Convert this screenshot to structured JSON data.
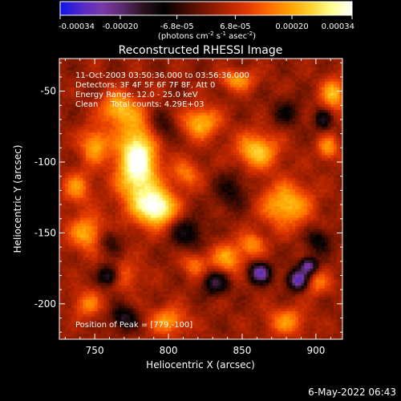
{
  "chart_data": {
    "type": "heatmap",
    "title": "Reconstructed RHESSI Image",
    "xlabel": "Heliocentric X (arcsec)",
    "ylabel": "Heliocentric Y (arcsec)",
    "xlim": [
      726,
      918
    ],
    "ylim": [
      -225,
      -27
    ],
    "x_ticks": [
      750,
      800,
      850,
      900
    ],
    "y_ticks": [
      -50,
      -100,
      -150,
      -200
    ],
    "colorbar": {
      "ticks": [
        "-0.00034",
        "-0.00020",
        "-6.8e-05",
        "6.8e-05",
        "0.00020",
        "0.00034"
      ],
      "tick_values": [
        -0.00034,
        -0.0002,
        -6.8e-05,
        6.8e-05,
        0.0002,
        0.00034
      ],
      "range": [
        -0.00034,
        0.00034
      ],
      "unit_label": [
        "(photons cm",
        "-2",
        " s",
        "-1",
        " asec",
        "-2",
        ")"
      ],
      "colors": [
        "#0b16e8",
        "#5028c8",
        "#7a3aa8",
        "#5a2a6c",
        "#2a121e",
        "#000000",
        "#3e0b00",
        "#7a1700",
        "#b32400",
        "#e23a00",
        "#ff6a00",
        "#ffa000",
        "#ffd030",
        "#ffff90",
        "#ffffff"
      ]
    },
    "annotations": [
      "11-Oct-2003 03:50:36.000 to 03:56:36.000",
      "Detectors: 3F 4F 5F 6F 7F 8F, Att 0",
      "Energy Range: 12.0 - 25.0 keV",
      "Clean     Total counts: 4.29E+03"
    ],
    "peak_label": "Position of Peak = [779,-100]",
    "peak": {
      "x": 779,
      "y": -100,
      "value": 0.00034
    },
    "grid": false,
    "colormap": "rhessi-bluewhite",
    "sources": [
      {
        "x": 779,
        "y": -100,
        "sx": 10,
        "sy": 22,
        "amp": 1.0
      },
      {
        "x": 793,
        "y": -132,
        "sx": 9,
        "sy": 9,
        "amp": 0.9
      },
      {
        "x": 765,
        "y": -62,
        "sx": 8,
        "sy": 8,
        "amp": 0.55
      },
      {
        "x": 750,
        "y": -88,
        "sx": 7,
        "sy": 9,
        "amp": 0.55
      },
      {
        "x": 745,
        "y": -150,
        "sx": 9,
        "sy": 9,
        "amp": 0.55
      },
      {
        "x": 822,
        "y": -72,
        "sx": 9,
        "sy": 8,
        "amp": 0.6
      },
      {
        "x": 860,
        "y": -92,
        "sx": 10,
        "sy": 9,
        "amp": 0.65
      },
      {
        "x": 880,
        "y": -130,
        "sx": 12,
        "sy": 11,
        "amp": 0.62
      },
      {
        "x": 912,
        "y": -52,
        "sx": 6,
        "sy": 8,
        "amp": 0.6
      },
      {
        "x": 908,
        "y": -90,
        "sx": 5,
        "sy": 6,
        "amp": 0.5
      },
      {
        "x": 847,
        "y": -42,
        "sx": 8,
        "sy": 5,
        "amp": 0.5
      },
      {
        "x": 840,
        "y": -168,
        "sx": 8,
        "sy": 8,
        "amp": 0.5
      },
      {
        "x": 800,
        "y": -212,
        "sx": 9,
        "sy": 7,
        "amp": 0.5
      },
      {
        "x": 880,
        "y": -212,
        "sx": 9,
        "sy": 7,
        "amp": 0.45
      },
      {
        "x": 900,
        "y": -185,
        "sx": 7,
        "sy": 6,
        "amp": 0.4
      },
      {
        "x": 818,
        "y": -172,
        "sx": 6,
        "sy": 6,
        "amp": 0.4
      },
      {
        "x": 857,
        "y": -158,
        "sx": 6,
        "sy": 6,
        "amp": 0.45
      },
      {
        "x": 812,
        "y": -108,
        "sx": 7,
        "sy": 7,
        "amp": 0.4
      },
      {
        "x": 745,
        "y": -200,
        "sx": 7,
        "sy": 7,
        "amp": 0.4
      },
      {
        "x": 738,
        "y": -118,
        "sx": 7,
        "sy": 8,
        "amp": 0.45
      },
      {
        "x": 770,
        "y": -180,
        "sx": 8,
        "sy": 7,
        "amp": 0.35
      },
      {
        "x": 760,
        "y": -155,
        "sx": 6,
        "sy": 6,
        "amp": -0.35
      },
      {
        "x": 760,
        "y": -180,
        "sx": 5,
        "sy": 5,
        "amp": -0.65
      },
      {
        "x": 832,
        "y": -185,
        "sx": 6,
        "sy": 6,
        "amp": -0.55
      },
      {
        "x": 862,
        "y": -178,
        "sx": 5,
        "sy": 5,
        "amp": -0.85
      },
      {
        "x": 888,
        "y": -183,
        "sx": 5,
        "sy": 5,
        "amp": -0.95
      },
      {
        "x": 895,
        "y": -173,
        "sx": 4,
        "sy": 4,
        "amp": -0.8
      },
      {
        "x": 813,
        "y": -150,
        "sx": 8,
        "sy": 8,
        "amp": -0.4
      },
      {
        "x": 843,
        "y": -120,
        "sx": 8,
        "sy": 10,
        "amp": -0.3
      },
      {
        "x": 795,
        "y": -75,
        "sx": 7,
        "sy": 8,
        "amp": -0.35
      },
      {
        "x": 902,
        "y": -155,
        "sx": 6,
        "sy": 6,
        "amp": -0.4
      },
      {
        "x": 770,
        "y": -210,
        "sx": 6,
        "sy": 6,
        "amp": -0.5
      },
      {
        "x": 880,
        "y": -65,
        "sx": 7,
        "sy": 7,
        "amp": -0.3
      },
      {
        "x": 905,
        "y": -70,
        "sx": 4,
        "sy": 5,
        "amp": -0.45
      }
    ]
  },
  "footer": {
    "date": "6-May-2022 06:43"
  }
}
